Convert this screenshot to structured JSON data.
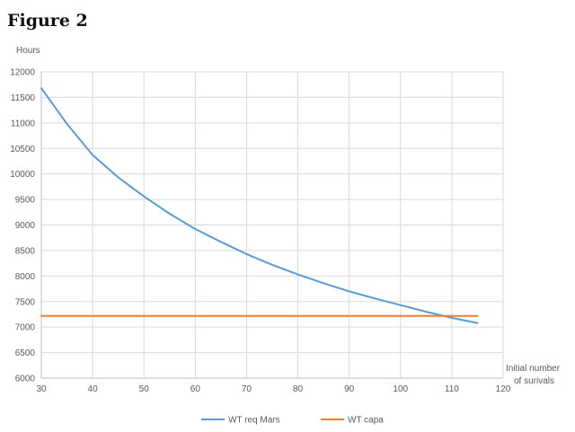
{
  "figure": {
    "title": "Figure 2"
  },
  "chart_data": {
    "type": "line",
    "ylabel": "Hours",
    "xlabel_lines": [
      "Initial number",
      "of surivals"
    ],
    "xlim": [
      30,
      120
    ],
    "ylim": [
      6000,
      12000
    ],
    "xticks": [
      30,
      40,
      50,
      60,
      70,
      80,
      90,
      100,
      110,
      120
    ],
    "yticks": [
      6000,
      6500,
      7000,
      7500,
      8000,
      8500,
      9000,
      9500,
      10000,
      10500,
      11000,
      11500,
      12000
    ],
    "grid": true,
    "legend_position": "bottom",
    "series": [
      {
        "name": "WT req Mars",
        "color": "#5b9bd5",
        "x": [
          30,
          35,
          40,
          45,
          50,
          55,
          60,
          65,
          70,
          75,
          80,
          85,
          90,
          95,
          100,
          105,
          110,
          115
        ],
        "y": [
          11680,
          10980,
          10370,
          9930,
          9560,
          9220,
          8920,
          8670,
          8430,
          8220,
          8030,
          7860,
          7700,
          7560,
          7430,
          7300,
          7180,
          7080
        ]
      },
      {
        "name": "WT capa",
        "color": "#ed7d31",
        "x": [
          30,
          115
        ],
        "y": [
          7220,
          7220
        ]
      }
    ]
  }
}
